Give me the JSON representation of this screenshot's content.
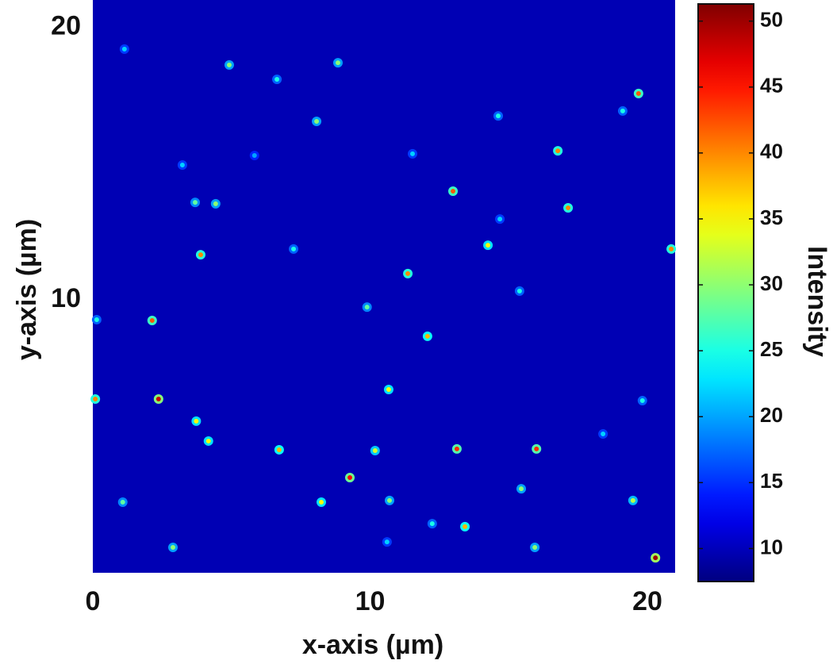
{
  "chart_data": {
    "type": "heatmap",
    "x_label": "x-axis (µm)",
    "y_label": "y-axis (µm)",
    "xlim": [
      0,
      21
    ],
    "xticks": [
      0,
      10,
      20
    ],
    "ylim": [
      0,
      21
    ],
    "yticks": [
      10,
      20
    ],
    "background_color": "#0000b4",
    "colorbar": {
      "label": "Intensity",
      "clim": [
        7.5,
        51.3
      ],
      "ticks": [
        10,
        15,
        20,
        25,
        30,
        35,
        40,
        45,
        50
      ]
    },
    "spots": {
      "x": [
        2.37,
        20.29,
        19.68,
        16.77,
        12.99,
        11.36,
        12.07,
        3.89,
        2.14,
        3.73,
        6.72,
        13.13,
        16.0,
        10.67,
        9.27,
        13.42,
        8.07,
        9.89,
        17.14,
        19.82,
        19.48,
        8.24,
        10.7,
        10.18,
        1.14,
        4.92,
        8.84,
        3.69,
        4.43,
        1.08,
        2.89,
        0.14,
        0.09,
        20.86,
        14.62,
        14.25,
        15.39,
        15.94,
        4.17,
        7.24,
        3.23,
        5.83,
        11.53,
        14.68,
        19.11,
        18.4,
        15.45,
        12.24,
        10.61,
        6.64
      ],
      "y": [
        6.37,
        0.55,
        17.57,
        15.47,
        13.99,
        10.97,
        8.67,
        11.66,
        9.25,
        5.56,
        4.51,
        4.54,
        4.54,
        6.72,
        3.49,
        1.69,
        16.55,
        9.74,
        13.38,
        6.31,
        2.65,
        2.59,
        2.65,
        4.48,
        19.2,
        18.62,
        18.7,
        13.58,
        13.53,
        2.59,
        0.93,
        9.28,
        6.37,
        11.87,
        16.75,
        12.01,
        10.33,
        0.93,
        4.83,
        11.87,
        14.95,
        15.3,
        15.36,
        12.97,
        16.93,
        5.09,
        3.08,
        1.8,
        1.13,
        18.09
      ],
      "values": [
        48,
        50,
        42,
        40,
        42,
        40,
        38,
        40,
        42,
        35,
        38,
        44,
        44,
        35,
        46,
        38,
        30,
        28,
        40,
        25,
        32,
        35,
        30,
        33,
        22,
        30,
        30,
        28,
        30,
        28,
        30,
        25,
        40,
        40,
        25,
        35,
        25,
        30,
        35,
        25,
        22,
        20,
        22,
        22,
        25,
        22,
        30,
        25,
        22,
        25
      ]
    }
  }
}
